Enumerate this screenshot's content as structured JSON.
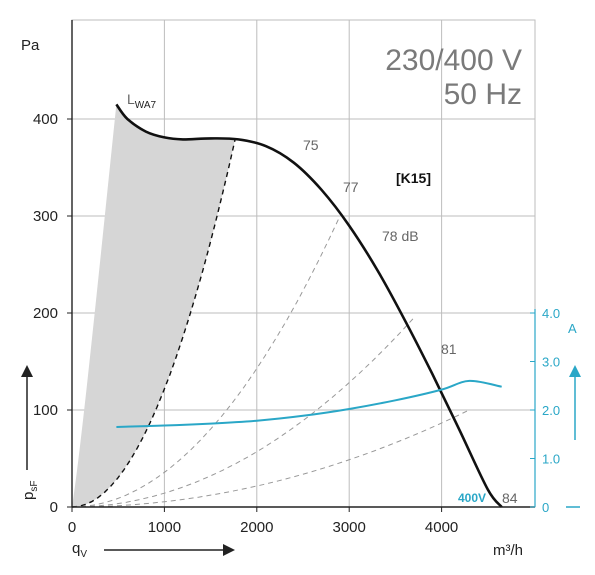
{
  "chart_data": {
    "type": "line",
    "title_voltage": "230/400 V",
    "title_frequency": "50 Hz",
    "curve_label": "[K15]",
    "voltage_label": "400V",
    "lwa_label": "L",
    "lwa_sub": "WA7",
    "y_unit": "Pa",
    "x_unit": "m³/h",
    "y2_unit": "A",
    "ylabel_symbol": "p",
    "ylabel_sub": "sF",
    "xlabel_symbol": "q",
    "xlabel_sub": "V",
    "xlim": [
      0,
      4800
    ],
    "ylim": [
      0,
      450
    ],
    "y2lim": [
      0,
      4.5
    ],
    "x_ticks": [
      "0",
      "1000",
      "2000",
      "3000",
      "4000"
    ],
    "x_tick_values": [
      0,
      1000,
      2000,
      3000,
      4000
    ],
    "y_ticks": [
      "0",
      "100",
      "200",
      "300",
      "400"
    ],
    "y_tick_values": [
      0,
      100,
      200,
      300,
      400
    ],
    "y2_ticks": [
      "0",
      "1.0",
      "2.0",
      "3.0",
      "4.0"
    ],
    "y2_tick_values": [
      0,
      1,
      2,
      3,
      4
    ],
    "grid": true,
    "colors": {
      "pressure": "#111111",
      "current": "#2aa7c7",
      "dashed": "#999999",
      "shade": "#d6d6d6",
      "grid": "#bdbdbd"
    },
    "series": [
      {
        "role": "pressure",
        "x": [
          480,
          600,
          800,
          1000,
          1200,
          1500,
          1800,
          2100,
          2400,
          2700,
          3000,
          3300,
          3600,
          3900,
          4200,
          4500,
          4650
        ],
        "y": [
          415,
          400,
          387,
          381,
          379,
          380,
          379,
          372,
          355,
          327,
          290,
          245,
          193,
          137,
          78,
          18,
          0
        ]
      },
      {
        "role": "current",
        "x": [
          480,
          1000,
          1500,
          2000,
          2500,
          3000,
          3500,
          4000,
          4300,
          4650
        ],
        "y": [
          1.65,
          1.68,
          1.72,
          1.78,
          1.88,
          2.02,
          2.2,
          2.42,
          2.6,
          2.48
        ]
      }
    ],
    "system_curves": [
      {
        "label": "75",
        "x": [
          0,
          1765
        ],
        "y": [
          0,
          379
        ]
      },
      {
        "label": "77",
        "x": [
          0,
          2900
        ],
        "y": [
          0,
          300
        ]
      },
      {
        "label": "78 dB",
        "x": [
          0,
          3700
        ],
        "y": [
          0,
          195
        ]
      },
      {
        "label": "81",
        "x": [
          0,
          4300
        ],
        "y": [
          0,
          100
        ]
      },
      {
        "label": "84"
      }
    ],
    "shaded_region": {
      "left_x": [
        480,
        300,
        100,
        0
      ],
      "left_y": [
        415,
        250,
        60,
        0
      ]
    }
  }
}
